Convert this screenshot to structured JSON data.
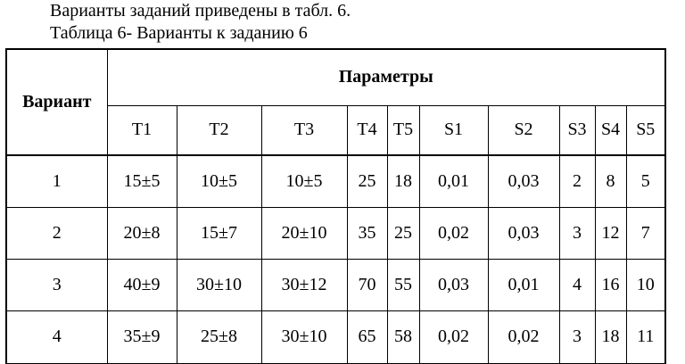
{
  "intro_line": "Варианты заданий приведены в табл. 6.",
  "table_caption": "Таблица 6- Варианты к заданию 6",
  "table": {
    "variant_header": "Вариант",
    "group_header": "Параметры",
    "columns": [
      "T1",
      "T2",
      "T3",
      "T4",
      "T5",
      "S1",
      "S2",
      "S3",
      "S4",
      "S5"
    ],
    "rows": [
      {
        "variant": "1",
        "values": [
          "15±5",
          "10±5",
          "10±5",
          "25",
          "18",
          "0,01",
          "0,03",
          "2",
          "8",
          "5"
        ]
      },
      {
        "variant": "2",
        "values": [
          "20±8",
          "15±7",
          "20±10",
          "35",
          "25",
          "0,02",
          "0,03",
          "3",
          "12",
          "7"
        ]
      },
      {
        "variant": "3",
        "values": [
          "40±9",
          "30±10",
          "30±12",
          "70",
          "55",
          "0,03",
          "0,01",
          "4",
          "16",
          "10"
        ]
      },
      {
        "variant": "4",
        "values": [
          "35±9",
          "25±8",
          "30±10",
          "65",
          "58",
          "0,02",
          "0,02",
          "3",
          "18",
          "11"
        ]
      }
    ]
  }
}
